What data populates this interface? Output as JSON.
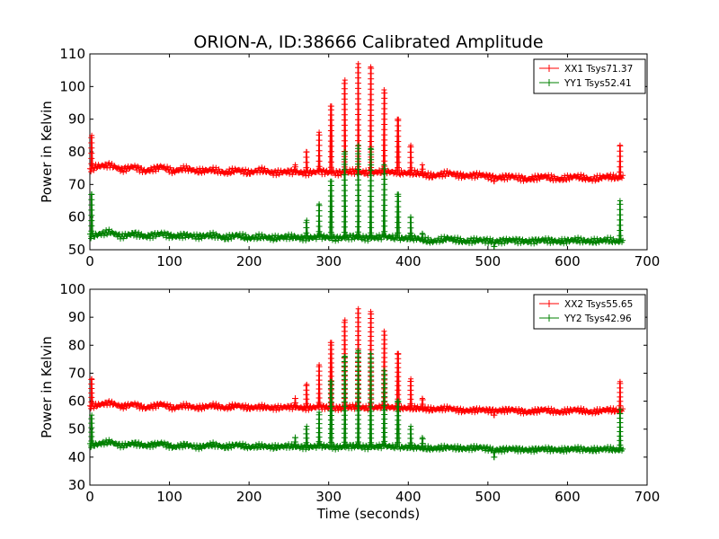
{
  "figure": {
    "title": "ORION-A, ID:38666 Calibrated Amplitude",
    "xlabel": "Time (seconds)"
  },
  "chart_data": [
    {
      "type": "line",
      "title": "ORION-A, ID:38666 Calibrated Amplitude",
      "xlabel": "",
      "ylabel": "Power in Kelvin",
      "xlim": [
        0,
        700
      ],
      "ylim": [
        50,
        110
      ],
      "xticks": [
        0,
        100,
        200,
        300,
        400,
        500,
        600,
        700
      ],
      "yticks": [
        50,
        60,
        70,
        80,
        90,
        100,
        110
      ],
      "legend_position": "top-right",
      "grid": false,
      "marker": "+",
      "series": [
        {
          "name": "XX1 Tsys71.37",
          "color": "#ff0000",
          "baseline": [
            [
              0,
              74.5
            ],
            [
              8,
              75.5
            ],
            [
              25,
              76
            ],
            [
              40,
              74.5
            ],
            [
              55,
              75.5
            ],
            [
              70,
              74
            ],
            [
              90,
              75.5
            ],
            [
              105,
              74
            ],
            [
              120,
              75
            ],
            [
              135,
              74
            ],
            [
              155,
              74.5
            ],
            [
              170,
              73.5
            ],
            [
              185,
              74.5
            ],
            [
              200,
              73.5
            ],
            [
              215,
              74.5
            ],
            [
              230,
              73.5
            ],
            [
              250,
              74
            ],
            [
              270,
              73.5
            ],
            [
              290,
              74
            ],
            [
              310,
              73.5
            ],
            [
              330,
              74
            ],
            [
              350,
              73.5
            ],
            [
              370,
              74
            ],
            [
              390,
              73.5
            ],
            [
              410,
              73.5
            ],
            [
              430,
              72.5
            ],
            [
              450,
              73.5
            ],
            [
              470,
              72.5
            ],
            [
              490,
              73
            ],
            [
              510,
              72
            ],
            [
              530,
              72.5
            ],
            [
              550,
              71.5
            ],
            [
              570,
              72.5
            ],
            [
              590,
              71.5
            ],
            [
              610,
              72.5
            ],
            [
              630,
              71.5
            ],
            [
              650,
              72.5
            ],
            [
              663,
              72
            ],
            [
              670,
              72.5
            ]
          ],
          "spikes": [
            [
              2,
              85
            ],
            [
              258,
              76
            ],
            [
              272,
              80
            ],
            [
              288,
              86
            ],
            [
              303,
              94
            ],
            [
              320,
              102
            ],
            [
              337,
              107
            ],
            [
              353,
              106
            ],
            [
              370,
              99
            ],
            [
              387,
              90
            ],
            [
              403,
              82
            ],
            [
              418,
              76
            ],
            [
              508,
              71
            ],
            [
              666,
              82
            ]
          ]
        },
        {
          "name": "YY1 Tsys52.41",
          "color": "#008000",
          "baseline": [
            [
              0,
              54
            ],
            [
              8,
              54.5
            ],
            [
              25,
              55.5
            ],
            [
              40,
              54
            ],
            [
              55,
              55
            ],
            [
              70,
              54
            ],
            [
              90,
              55
            ],
            [
              105,
              54
            ],
            [
              120,
              54.5
            ],
            [
              135,
              54
            ],
            [
              155,
              54.5
            ],
            [
              170,
              53.5
            ],
            [
              185,
              54.5
            ],
            [
              200,
              53.5
            ],
            [
              215,
              54
            ],
            [
              230,
              53.5
            ],
            [
              250,
              54
            ],
            [
              270,
              53.5
            ],
            [
              290,
              54
            ],
            [
              310,
              53.5
            ],
            [
              330,
              54
            ],
            [
              350,
              53.5
            ],
            [
              370,
              54
            ],
            [
              390,
              53.5
            ],
            [
              410,
              53.5
            ],
            [
              430,
              52.5
            ],
            [
              450,
              53.5
            ],
            [
              470,
              52.5
            ],
            [
              490,
              53
            ],
            [
              510,
              52.5
            ],
            [
              530,
              53
            ],
            [
              550,
              52.5
            ],
            [
              570,
              53
            ],
            [
              590,
              52.5
            ],
            [
              610,
              53
            ],
            [
              630,
              52.5
            ],
            [
              650,
              53
            ],
            [
              663,
              52.5
            ],
            [
              670,
              53
            ]
          ],
          "spikes": [
            [
              2,
              67
            ],
            [
              258,
              54
            ],
            [
              272,
              59
            ],
            [
              288,
              64
            ],
            [
              303,
              71
            ],
            [
              320,
              80
            ],
            [
              337,
              82
            ],
            [
              353,
              81
            ],
            [
              370,
              76
            ],
            [
              387,
              67
            ],
            [
              403,
              60
            ],
            [
              418,
              55
            ],
            [
              508,
              51
            ],
            [
              666,
              65
            ]
          ]
        }
      ]
    },
    {
      "type": "line",
      "xlabel": "Time (seconds)",
      "ylabel": "Power in Kelvin",
      "xlim": [
        0,
        700
      ],
      "ylim": [
        30,
        100
      ],
      "xticks": [
        0,
        100,
        200,
        300,
        400,
        500,
        600,
        700
      ],
      "yticks": [
        30,
        40,
        50,
        60,
        70,
        80,
        90,
        100
      ],
      "legend_position": "top-right",
      "grid": false,
      "marker": "+",
      "series": [
        {
          "name": "XX2 Tsys55.65",
          "color": "#ff0000",
          "baseline": [
            [
              0,
              58
            ],
            [
              8,
              58.5
            ],
            [
              25,
              59.5
            ],
            [
              40,
              58
            ],
            [
              55,
              59
            ],
            [
              70,
              57.5
            ],
            [
              90,
              59
            ],
            [
              105,
              57.5
            ],
            [
              120,
              58.5
            ],
            [
              135,
              57.5
            ],
            [
              155,
              58.5
            ],
            [
              170,
              57.5
            ],
            [
              185,
              58.5
            ],
            [
              200,
              57.5
            ],
            [
              215,
              58
            ],
            [
              230,
              57.5
            ],
            [
              250,
              58
            ],
            [
              270,
              57.5
            ],
            [
              290,
              58
            ],
            [
              310,
              57.5
            ],
            [
              330,
              58
            ],
            [
              350,
              57.5
            ],
            [
              370,
              58
            ],
            [
              390,
              57.5
            ],
            [
              410,
              57.5
            ],
            [
              430,
              57
            ],
            [
              450,
              57.5
            ],
            [
              470,
              56.5
            ],
            [
              490,
              57
            ],
            [
              510,
              56.5
            ],
            [
              530,
              57
            ],
            [
              550,
              56
            ],
            [
              570,
              57
            ],
            [
              590,
              56
            ],
            [
              610,
              57
            ],
            [
              630,
              56
            ],
            [
              650,
              57
            ],
            [
              663,
              56.5
            ],
            [
              670,
              57
            ]
          ],
          "spikes": [
            [
              2,
              68
            ],
            [
              258,
              61
            ],
            [
              272,
              66
            ],
            [
              288,
              73
            ],
            [
              303,
              81
            ],
            [
              320,
              89
            ],
            [
              337,
              93
            ],
            [
              353,
              92
            ],
            [
              370,
              85
            ],
            [
              387,
              77
            ],
            [
              403,
              68
            ],
            [
              418,
              61
            ],
            [
              508,
              55
            ],
            [
              666,
              67
            ]
          ]
        },
        {
          "name": "YY2 Tsys42.96",
          "color": "#008000",
          "baseline": [
            [
              0,
              44
            ],
            [
              8,
              44.5
            ],
            [
              25,
              45.5
            ],
            [
              40,
              44
            ],
            [
              55,
              45
            ],
            [
              70,
              44
            ],
            [
              90,
              45
            ],
            [
              105,
              43.5
            ],
            [
              120,
              44.5
            ],
            [
              135,
              43.5
            ],
            [
              155,
              44.5
            ],
            [
              170,
              43.5
            ],
            [
              185,
              44.5
            ],
            [
              200,
              43.5
            ],
            [
              215,
              44
            ],
            [
              230,
              43.5
            ],
            [
              250,
              44
            ],
            [
              270,
              43.5
            ],
            [
              290,
              44
            ],
            [
              310,
              43.5
            ],
            [
              330,
              44
            ],
            [
              350,
              43.5
            ],
            [
              370,
              44
            ],
            [
              390,
              43.5
            ],
            [
              410,
              43.5
            ],
            [
              430,
              43
            ],
            [
              450,
              43.5
            ],
            [
              470,
              43
            ],
            [
              490,
              43.5
            ],
            [
              510,
              42.5
            ],
            [
              530,
              43
            ],
            [
              550,
              42.5
            ],
            [
              570,
              43
            ],
            [
              590,
              42.5
            ],
            [
              610,
              43
            ],
            [
              630,
              42.5
            ],
            [
              650,
              43
            ],
            [
              663,
              42.5
            ],
            [
              670,
              43
            ]
          ],
          "spikes": [
            [
              2,
              55
            ],
            [
              258,
              47
            ],
            [
              272,
              51
            ],
            [
              288,
              56
            ],
            [
              303,
              67
            ],
            [
              320,
              76
            ],
            [
              337,
              78
            ],
            [
              353,
              77
            ],
            [
              370,
              71
            ],
            [
              387,
              60
            ],
            [
              403,
              51
            ],
            [
              418,
              47
            ],
            [
              508,
              40
            ],
            [
              666,
              57
            ]
          ]
        }
      ]
    }
  ]
}
